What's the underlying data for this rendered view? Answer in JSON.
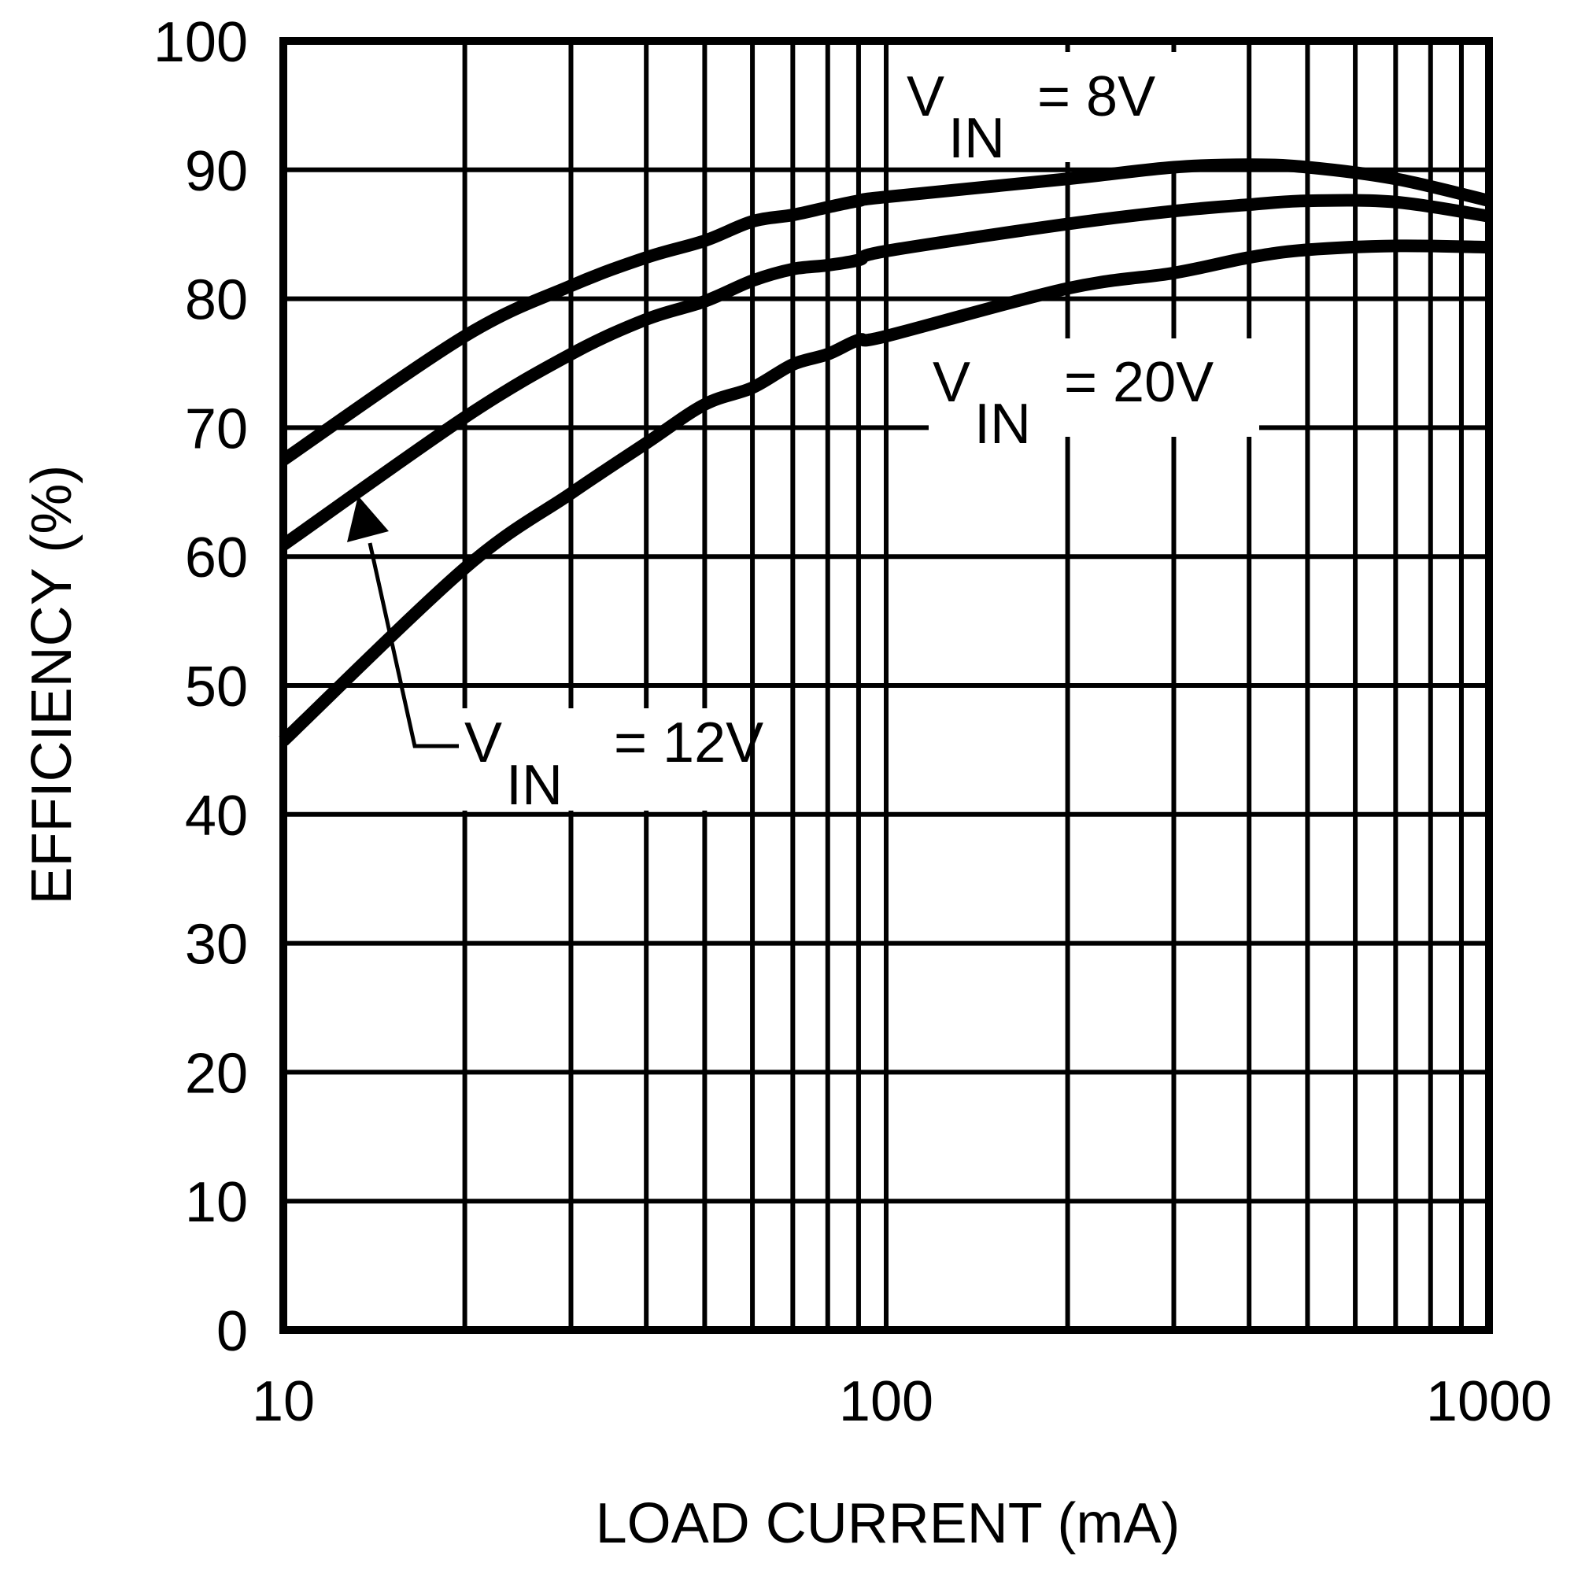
{
  "chart_data": {
    "type": "line",
    "title": "",
    "xlabel": "LOAD CURRENT (mA)",
    "ylabel": "EFFICIENCY (%)",
    "xscale": "log",
    "xlim": [
      10,
      1000
    ],
    "ylim": [
      0,
      100
    ],
    "grid": true,
    "legend": "inline annotations",
    "x_ticks": [
      "10",
      "100",
      "1000"
    ],
    "y_ticks": [
      "0",
      "10",
      "20",
      "30",
      "40",
      "50",
      "60",
      "70",
      "80",
      "90",
      "100"
    ],
    "x": [
      10,
      20,
      30,
      40,
      50,
      60,
      70,
      80,
      90,
      100,
      200,
      300,
      400,
      500,
      700,
      1000
    ],
    "series": [
      {
        "name": "VIN = 8V",
        "values": [
          67.5,
          77.1,
          81.0,
          83.2,
          84.5,
          86.0,
          86.5,
          87.1,
          87.6,
          87.9,
          89.3,
          90.2,
          90.4,
          90.2,
          89.3,
          87.6
        ]
      },
      {
        "name": "VIN = 12V",
        "values": [
          60.9,
          70.8,
          75.7,
          78.4,
          79.8,
          81.4,
          82.3,
          82.6,
          83.0,
          83.7,
          85.8,
          86.8,
          87.3,
          87.6,
          87.5,
          86.4
        ]
      },
      {
        "name": "VIN = 20V",
        "values": [
          45.7,
          59.1,
          64.9,
          68.8,
          71.8,
          73.1,
          74.9,
          75.7,
          76.8,
          77.1,
          80.8,
          82.0,
          83.2,
          83.8,
          84.1,
          84.0
        ]
      }
    ],
    "annotations": [
      {
        "text": "VIN = 8V",
        "main": "V",
        "sub": "IN",
        "rest": "= 8V"
      },
      {
        "text": "VIN = 20V",
        "main": "V",
        "sub": "IN",
        "rest": "= 20V"
      },
      {
        "text": "VIN = 12V",
        "main": "V",
        "sub": "IN",
        "rest": "= 12V",
        "arrow": true
      }
    ],
    "colors": {
      "line": "#000000",
      "grid": "#000000",
      "background": "#ffffff"
    }
  }
}
